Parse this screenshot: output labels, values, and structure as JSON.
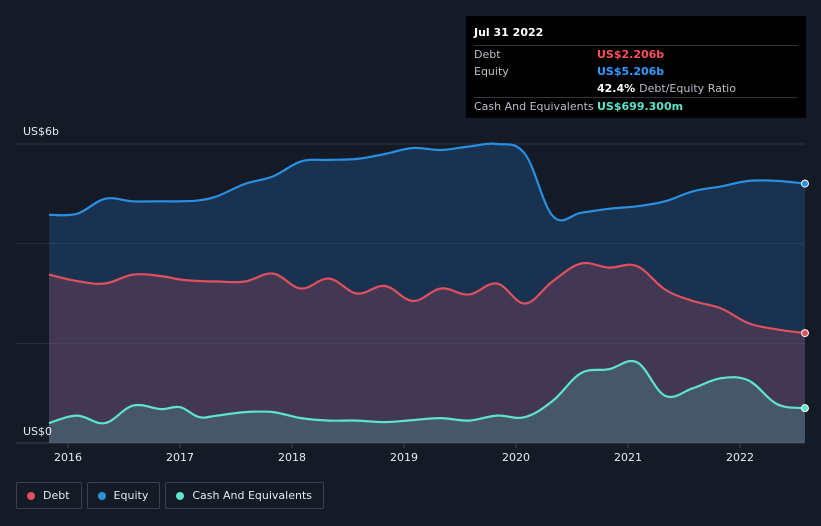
{
  "chart_data": {
    "type": "area",
    "title": "",
    "xlabel": "",
    "ylabel": "",
    "y_unit_label_top": "US$6b",
    "y_unit_label_bottom": "US$0",
    "ylim": [
      0,
      6
    ],
    "xlim": [
      2015.83,
      2022.58
    ],
    "x_ticks": [
      2016,
      2017,
      2018,
      2019,
      2020,
      2021,
      2022
    ],
    "x_tick_labels": [
      "2016",
      "2017",
      "2018",
      "2019",
      "2020",
      "2021",
      "2022"
    ],
    "y_gridlines": [
      0,
      2,
      4,
      6
    ],
    "series": [
      {
        "name": "Equity",
        "color": "#2a8fe0",
        "x": [
          2015.83,
          2016.08,
          2016.33,
          2016.58,
          2016.83,
          2017.0,
          2017.17,
          2017.33,
          2017.58,
          2017.83,
          2018.08,
          2018.33,
          2018.58,
          2018.83,
          2019.08,
          2019.33,
          2019.58,
          2019.83,
          2020.08,
          2020.33,
          2020.58,
          2020.83,
          2021.08,
          2021.33,
          2021.58,
          2021.83,
          2022.08,
          2022.33,
          2022.58
        ],
        "values": [
          4.58,
          4.6,
          4.9,
          4.85,
          4.85,
          4.85,
          4.87,
          4.95,
          5.2,
          5.35,
          5.65,
          5.68,
          5.7,
          5.8,
          5.92,
          5.88,
          5.95,
          6.0,
          5.8,
          4.55,
          4.62,
          4.7,
          4.75,
          4.85,
          5.05,
          5.15,
          5.26,
          5.26,
          5.206
        ]
      },
      {
        "name": "Debt",
        "color": "#e0505e",
        "x": [
          2015.83,
          2016.08,
          2016.33,
          2016.58,
          2016.83,
          2017.0,
          2017.17,
          2017.33,
          2017.58,
          2017.83,
          2018.08,
          2018.33,
          2018.58,
          2018.83,
          2019.08,
          2019.33,
          2019.58,
          2019.83,
          2020.08,
          2020.33,
          2020.58,
          2020.83,
          2021.08,
          2021.33,
          2021.58,
          2021.83,
          2022.08,
          2022.33,
          2022.58
        ],
        "values": [
          3.38,
          3.25,
          3.2,
          3.38,
          3.35,
          3.28,
          3.25,
          3.24,
          3.24,
          3.4,
          3.1,
          3.3,
          3.0,
          3.15,
          2.85,
          3.1,
          2.98,
          3.2,
          2.8,
          3.25,
          3.6,
          3.52,
          3.55,
          3.08,
          2.85,
          2.7,
          2.4,
          2.28,
          2.206
        ]
      },
      {
        "name": "Cash And Equivalents",
        "color": "#5ee4cc",
        "x": [
          2015.83,
          2016.08,
          2016.33,
          2016.58,
          2016.83,
          2017.0,
          2017.17,
          2017.33,
          2017.58,
          2017.83,
          2018.08,
          2018.33,
          2018.58,
          2018.83,
          2019.08,
          2019.33,
          2019.58,
          2019.83,
          2020.08,
          2020.33,
          2020.58,
          2020.83,
          2021.08,
          2021.33,
          2021.58,
          2021.83,
          2022.08,
          2022.33,
          2022.58
        ],
        "values": [
          0.4,
          0.55,
          0.4,
          0.75,
          0.68,
          0.72,
          0.52,
          0.55,
          0.62,
          0.62,
          0.5,
          0.45,
          0.45,
          0.42,
          0.46,
          0.5,
          0.45,
          0.55,
          0.52,
          0.85,
          1.4,
          1.48,
          1.62,
          0.95,
          1.1,
          1.3,
          1.25,
          0.78,
          0.6993
        ]
      }
    ]
  },
  "tooltip": {
    "date": "Jul 31 2022",
    "rows": [
      {
        "label": "Debt",
        "value": "US$2.206b",
        "color": "#ff4e5b"
      },
      {
        "label": "Equity",
        "value": "US$5.206b",
        "color": "#2f9bff"
      }
    ],
    "ratio_value": "42.4%",
    "ratio_label": "Debt/Equity Ratio",
    "cash_label": "Cash And Equivalents",
    "cash_value": "US$699.300m",
    "cash_color": "#5ee4cc"
  },
  "legend": [
    {
      "label": "Debt",
      "color": "#e0505e"
    },
    {
      "label": "Equity",
      "color": "#2a8fe0"
    },
    {
      "label": "Cash And Equivalents",
      "color": "#5ee4cc"
    }
  ]
}
